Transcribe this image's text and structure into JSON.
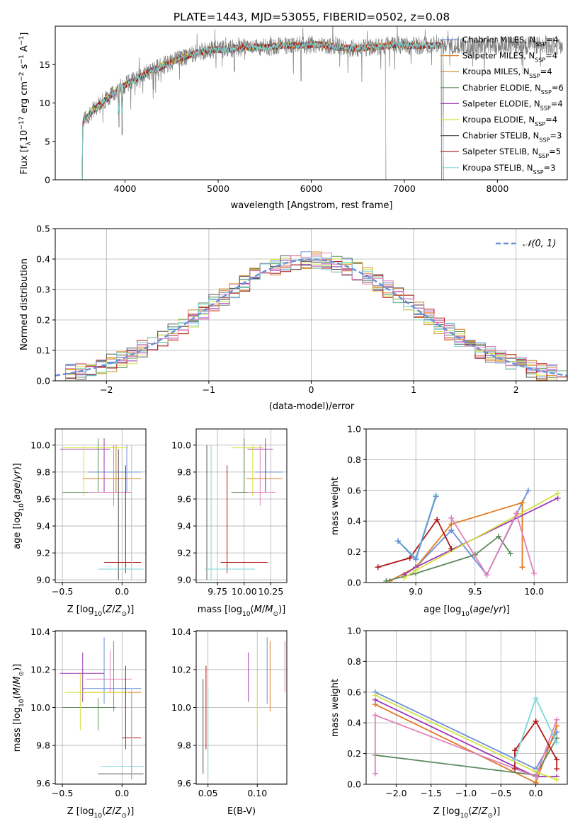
{
  "title": "PLATE=1443, MJD=53055, FIBERID=0502, z=0.08",
  "colors": [
    "#6a8fd8",
    "#e07b20",
    "#c88a2a",
    "#5e8a5e",
    "#9b3bb5",
    "#d4e040",
    "#555555",
    "#b01818",
    "#7fd6d6",
    "#e080b8"
  ],
  "chart_data": [
    {
      "type": "line",
      "id": "spectrum",
      "title": "PLATE=1443, MJD=53055, FIBERID=0502, z=0.08",
      "xlabel": "wavelength [Angstrom, rest frame]",
      "ylabel": "Flux [f_λ 10^-17 erg cm^-2 s^-1 A^-1]",
      "xlim": [
        3250,
        8750
      ],
      "ylim": [
        0,
        20
      ],
      "xticks": [
        4000,
        5000,
        6000,
        7000,
        8000
      ],
      "yticks": [
        0,
        5,
        10,
        15
      ],
      "grid": false,
      "legend_position": "right",
      "continuum": [
        [
          3540,
          7.4
        ],
        [
          3650,
          9.0
        ],
        [
          3800,
          10.5
        ],
        [
          3950,
          12.0
        ],
        [
          4100,
          13.0
        ],
        [
          4300,
          14.3
        ],
        [
          4500,
          15.3
        ],
        [
          4700,
          16.3
        ],
        [
          4900,
          16.9
        ],
        [
          5100,
          17.0
        ],
        [
          5300,
          17.3
        ],
        [
          5500,
          17.2
        ],
        [
          5700,
          17.5
        ],
        [
          5900,
          17.5
        ],
        [
          6100,
          17.6
        ],
        [
          6300,
          17.2
        ],
        [
          6500,
          17.1
        ],
        [
          6700,
          17.3
        ],
        [
          6900,
          17.6
        ],
        [
          7100,
          17.4
        ],
        [
          7300,
          17.5
        ],
        [
          7420,
          17.5
        ]
      ],
      "series": [
        {
          "name": "Chabrier MILES",
          "nssp": "4",
          "color": "#6a8fd8",
          "end": 7400
        },
        {
          "name": "Salpeter MILES",
          "nssp": "4",
          "color": "#e07b20",
          "end": 7400
        },
        {
          "name": "Kroupa MILES",
          "nssp": "4",
          "color": "#c88a2a",
          "end": 7420
        },
        {
          "name": "Chabrier ELODIE",
          "nssp": "6",
          "color": "#5e8a5e",
          "end": 6800
        },
        {
          "name": "Salpeter ELODIE",
          "nssp": "4",
          "color": "#9b3bb5",
          "end": 6800
        },
        {
          "name": "Kroupa ELODIE",
          "nssp": "4",
          "color": "#d4e040",
          "end": 6800
        },
        {
          "name": "Chabrier STELIB",
          "nssp": "3",
          "color": "#555555",
          "end": 7420
        },
        {
          "name": "Salpeter STELIB",
          "nssp": "5",
          "color": "#b01818",
          "end": 7420
        },
        {
          "name": "Kroupa STELIB",
          "nssp": "3",
          "color": "#7fd6d6",
          "end": 7420
        }
      ]
    },
    {
      "type": "line",
      "id": "residuals",
      "xlabel": "(data-model)/error",
      "ylabel": "Normed distribution",
      "xlim": [
        -2.5,
        2.5
      ],
      "ylim": [
        0,
        0.5
      ],
      "xticks": [
        -2,
        -1,
        0,
        1,
        2
      ],
      "yticks": [
        0.0,
        0.1,
        0.2,
        0.3,
        0.4,
        0.5
      ],
      "grid": true,
      "legend_position": "top-right",
      "gaussian_label": "𝒩(0, 1)",
      "bin_width": 0.1
    },
    {
      "type": "scatter",
      "id": "Z_age",
      "xlabel": "Z [log10(Z/Z⊙)]",
      "ylabel": "age [log10(age/yr)]",
      "xlim": [
        -0.56,
        0.2
      ],
      "ylim": [
        8.98,
        10.12
      ],
      "xticks": [
        -0.5,
        0.0
      ],
      "yticks": [
        9.0,
        9.2,
        9.4,
        9.6,
        9.8,
        10.0
      ],
      "grid": true,
      "errorbars": [
        {
          "color": "#6a8fd8",
          "x": 0.04,
          "y": 9.8,
          "xlo": -0.28,
          "xhi": 0.16,
          "ylo": 9.65,
          "yhi": 10.0
        },
        {
          "color": "#e07b20",
          "x": -0.05,
          "y": 9.75,
          "xlo": -0.33,
          "xhi": 0.16,
          "ylo": 9.65,
          "yhi": 10.0
        },
        {
          "color": "#5e8a5e",
          "x": -0.2,
          "y": 9.65,
          "xlo": -0.5,
          "xhi": -0.1,
          "ylo": 9.65,
          "yhi": 10.05
        },
        {
          "color": "#9b3bb5",
          "x": -0.15,
          "y": 9.97,
          "xlo": -0.52,
          "xhi": -0.1,
          "ylo": 9.65,
          "yhi": 10.05
        },
        {
          "color": "#d4e040",
          "x": -0.32,
          "y": 9.98,
          "xlo": -0.5,
          "xhi": 0.05,
          "ylo": 9.62,
          "yhi": 10.0
        },
        {
          "color": "#e080b8",
          "x": -0.07,
          "y": 9.65,
          "xlo": -0.28,
          "xhi": 0.08,
          "ylo": 9.55,
          "yhi": 10.0
        },
        {
          "color": "#555555",
          "x": -0.03,
          "y": 9.08,
          "xlo": -0.18,
          "xhi": 0.15,
          "ylo": 9.0,
          "yhi": 9.97
        },
        {
          "color": "#b01818",
          "x": 0.03,
          "y": 9.13,
          "xlo": -0.15,
          "xhi": 0.16,
          "ylo": 9.05,
          "yhi": 9.85
        },
        {
          "color": "#7fd6d6",
          "x": 0.08,
          "y": 9.08,
          "xlo": -0.2,
          "xhi": 0.18,
          "ylo": 9.0,
          "yhi": 10.0
        }
      ]
    },
    {
      "type": "scatter",
      "id": "mass_age",
      "xlabel": "mass [log10(M/M⊙)]",
      "xlim": [
        9.55,
        10.4
      ],
      "ylim": [
        8.98,
        10.12
      ],
      "xticks": [
        9.75,
        10.0,
        10.25
      ],
      "xticklabels": [
        "9.75",
        "10.00",
        "10.25"
      ],
      "yticks": [
        9.0,
        9.2,
        9.4,
        9.6,
        9.8,
        10.0
      ],
      "grid": true,
      "errorbars": [
        {
          "color": "#6a8fd8",
          "x": 10.2,
          "y": 9.8,
          "xlo": 10.1,
          "xhi": 10.36,
          "ylo": 9.65,
          "yhi": 10.0
        },
        {
          "color": "#e07b20",
          "x": 10.2,
          "y": 9.75,
          "xlo": 10.02,
          "xhi": 10.36,
          "ylo": 9.65,
          "yhi": 10.0
        },
        {
          "color": "#5e8a5e",
          "x": 10.0,
          "y": 9.65,
          "xlo": 9.88,
          "xhi": 10.05,
          "ylo": 9.65,
          "yhi": 10.05
        },
        {
          "color": "#9b3bb5",
          "x": 10.2,
          "y": 9.97,
          "xlo": 10.03,
          "xhi": 10.27,
          "ylo": 9.65,
          "yhi": 10.05
        },
        {
          "color": "#d4e040",
          "x": 10.08,
          "y": 9.98,
          "xlo": 9.88,
          "xhi": 10.18,
          "ylo": 9.62,
          "yhi": 10.0
        },
        {
          "color": "#e080b8",
          "x": 10.15,
          "y": 9.65,
          "xlo": 10.03,
          "xhi": 10.29,
          "ylo": 9.55,
          "yhi": 10.0
        },
        {
          "color": "#555555",
          "x": 9.65,
          "y": 9.08,
          "xlo": 9.63,
          "xhi": 10.1,
          "ylo": 9.0,
          "yhi": 10.0
        },
        {
          "color": "#b01818",
          "x": 9.84,
          "y": 9.13,
          "xlo": 9.78,
          "xhi": 10.22,
          "ylo": 9.05,
          "yhi": 9.85
        },
        {
          "color": "#7fd6d6",
          "x": 9.69,
          "y": 9.08,
          "xlo": 9.63,
          "xhi": 10.1,
          "ylo": 9.0,
          "yhi": 10.0
        }
      ]
    },
    {
      "type": "line",
      "id": "age_weight",
      "xlabel": "age [log10(age/yr)]",
      "ylabel": "mass weight",
      "xlim": [
        8.58,
        10.28
      ],
      "ylim": [
        0,
        1.0
      ],
      "xticks": [
        9.0,
        9.5,
        10.0
      ],
      "yticks": [
        0.0,
        0.2,
        0.4,
        0.6,
        0.8,
        1.0
      ],
      "grid": true,
      "series": [
        {
          "color": "#6a8fd8",
          "x": [
            9.0,
            9.3,
            9.6,
            9.95
          ],
          "y": [
            0.1,
            0.34,
            0.05,
            0.6
          ]
        },
        {
          "color": "#e07b20",
          "x": [
            8.78,
            9.0,
            9.3,
            9.9,
            9.9
          ],
          "y": [
            0.01,
            0.1,
            0.38,
            0.52,
            0.1
          ]
        },
        {
          "color": "#5e8a5e",
          "x": [
            8.75,
            9.0,
            9.5,
            9.7,
            9.8
          ],
          "y": [
            0.01,
            0.06,
            0.18,
            0.3,
            0.19
          ]
        },
        {
          "color": "#9b3bb5",
          "x": [
            8.9,
            9.0,
            10.2
          ],
          "y": [
            0.05,
            0.1,
            0.55
          ]
        },
        {
          "color": "#d4e040",
          "x": [
            8.9,
            9.0,
            10.2
          ],
          "y": [
            0.03,
            0.08,
            0.58
          ]
        },
        {
          "color": "#e080b8",
          "x": [
            9.3,
            9.6,
            9.85,
            10.0
          ],
          "y": [
            0.42,
            0.05,
            0.45,
            0.06
          ]
        },
        {
          "color": "#b01818",
          "x": [
            8.68,
            8.95,
            9.18,
            9.3
          ],
          "y": [
            0.1,
            0.16,
            0.41,
            0.22
          ]
        },
        {
          "color": "#7fd6d6",
          "x": [
            8.85,
            9.0,
            9.17
          ],
          "y": [
            0.27,
            0.16,
            0.57
          ]
        },
        {
          "color": "#6a8fd8",
          "x": [
            8.85,
            9.0,
            9.17
          ],
          "y": [
            0.27,
            0.15,
            0.56
          ]
        }
      ]
    },
    {
      "type": "scatter",
      "id": "Z_mass",
      "xlabel": "Z [log10(Z/Z⊙)]",
      "ylabel": "mass [log10(M/M⊙)]",
      "xlim": [
        -0.56,
        0.2
      ],
      "ylim": [
        9.595,
        10.405
      ],
      "xticks": [
        -0.5,
        0.0
      ],
      "yticks": [
        9.6,
        9.8,
        10.0,
        10.2,
        10.4
      ],
      "grid": true,
      "errorbars": [
        {
          "color": "#6a8fd8",
          "x": -0.15,
          "y": 10.1,
          "xlo": -0.33,
          "xhi": 0.16,
          "ylo": 10.02,
          "yhi": 10.37
        },
        {
          "color": "#e07b20",
          "x": -0.07,
          "y": 10.08,
          "xlo": -0.33,
          "xhi": 0.16,
          "ylo": 9.98,
          "yhi": 10.35
        },
        {
          "color": "#5e8a5e",
          "x": -0.2,
          "y": 10.0,
          "xlo": -0.5,
          "xhi": -0.05,
          "ylo": 9.88,
          "yhi": 10.05
        },
        {
          "color": "#9b3bb5",
          "x": -0.33,
          "y": 10.18,
          "xlo": -0.52,
          "xhi": -0.15,
          "ylo": 10.03,
          "yhi": 10.29
        },
        {
          "color": "#d4e040",
          "x": -0.35,
          "y": 10.08,
          "xlo": -0.48,
          "xhi": 0.05,
          "ylo": 9.88,
          "yhi": 10.18
        },
        {
          "color": "#e080b8",
          "x": -0.1,
          "y": 10.15,
          "xlo": -0.3,
          "xhi": 0.08,
          "ylo": 10.08,
          "yhi": 10.3
        },
        {
          "color": "#555555",
          "x": 0.08,
          "y": 9.65,
          "xlo": -0.2,
          "xhi": 0.18,
          "ylo": 9.62,
          "yhi": 10.08
        },
        {
          "color": "#b01818",
          "x": 0.03,
          "y": 9.84,
          "xlo": 0.0,
          "xhi": 0.16,
          "ylo": 9.78,
          "yhi": 10.22
        },
        {
          "color": "#7fd6d6",
          "x": 0.08,
          "y": 9.69,
          "xlo": -0.18,
          "xhi": 0.18,
          "ylo": 9.62,
          "yhi": 10.1
        }
      ]
    },
    {
      "type": "scatter",
      "id": "ebv_mass",
      "xlabel": "E(B-V)",
      "xlim": [
        0.038,
        0.13
      ],
      "ylim": [
        9.595,
        10.405
      ],
      "xticks": [
        0.05,
        0.1
      ],
      "xticklabels": [
        "0.05",
        "0.10"
      ],
      "yticks": [
        9.6,
        9.8,
        10.0,
        10.2,
        10.4
      ],
      "grid": true,
      "errorbars": [
        {
          "color": "#555555",
          "x": 0.045,
          "ylo": 9.65,
          "yhi": 10.15
        },
        {
          "color": "#b01818",
          "x": 0.048,
          "ylo": 9.78,
          "yhi": 10.22
        },
        {
          "color": "#7fd6d6",
          "x": 0.05,
          "ylo": 9.62,
          "yhi": 10.1
        },
        {
          "color": "#9b3bb5",
          "x": 0.091,
          "ylo": 10.03,
          "yhi": 10.29
        },
        {
          "color": "#d4e040",
          "x": 0.1,
          "ylo": 9.88,
          "yhi": 10.18
        },
        {
          "color": "#6a8fd8",
          "x": 0.11,
          "ylo": 10.02,
          "yhi": 10.37
        },
        {
          "color": "#e07b20",
          "x": 0.113,
          "ylo": 9.98,
          "yhi": 10.35
        },
        {
          "color": "#e080b8",
          "x": 0.128,
          "ylo": 10.08,
          "yhi": 10.35
        }
      ]
    },
    {
      "type": "line",
      "id": "Z_weight",
      "xlabel": "Z [log10(Z/Z⊙)]",
      "ylabel": "mass weight",
      "xlim": [
        -2.43,
        0.45
      ],
      "ylim": [
        0,
        1.0
      ],
      "xticks": [
        -2.0,
        -1.5,
        -1.0,
        -0.5,
        0.0
      ],
      "yticks": [
        0.0,
        0.2,
        0.4,
        0.6,
        0.8,
        1.0
      ],
      "grid": true,
      "series": [
        {
          "color": "#6a8fd8",
          "x": [
            -2.3,
            0.0,
            0.3
          ],
          "y": [
            0.6,
            0.1,
            0.34
          ]
        },
        {
          "color": "#e07b20",
          "x": [
            -2.3,
            0.0,
            0.3
          ],
          "y": [
            0.52,
            0.01,
            0.38
          ]
        },
        {
          "color": "#5e8a5e",
          "x": [
            -2.3,
            0.0,
            0.3
          ],
          "y": [
            0.19,
            0.06,
            0.3
          ]
        },
        {
          "color": "#9b3bb5",
          "x": [
            -2.3,
            0.0,
            0.3
          ],
          "y": [
            0.55,
            0.05,
            0.05
          ]
        },
        {
          "color": "#d4e040",
          "x": [
            -2.3,
            0.0,
            0.3
          ],
          "y": [
            0.58,
            0.08,
            0.03
          ]
        },
        {
          "color": "#e080b8",
          "x": [
            -2.3,
            -2.3,
            0.0,
            0.3
          ],
          "y": [
            0.07,
            0.45,
            0.05,
            0.42
          ]
        },
        {
          "color": "#b01818",
          "x": [
            -0.3,
            -0.3,
            0.0,
            0.3,
            0.3
          ],
          "y": [
            0.1,
            0.22,
            0.41,
            0.16,
            0.1
          ]
        },
        {
          "color": "#7fd6d6",
          "x": [
            -0.3,
            0.0,
            0.3
          ],
          "y": [
            0.16,
            0.56,
            0.27
          ]
        }
      ]
    }
  ]
}
